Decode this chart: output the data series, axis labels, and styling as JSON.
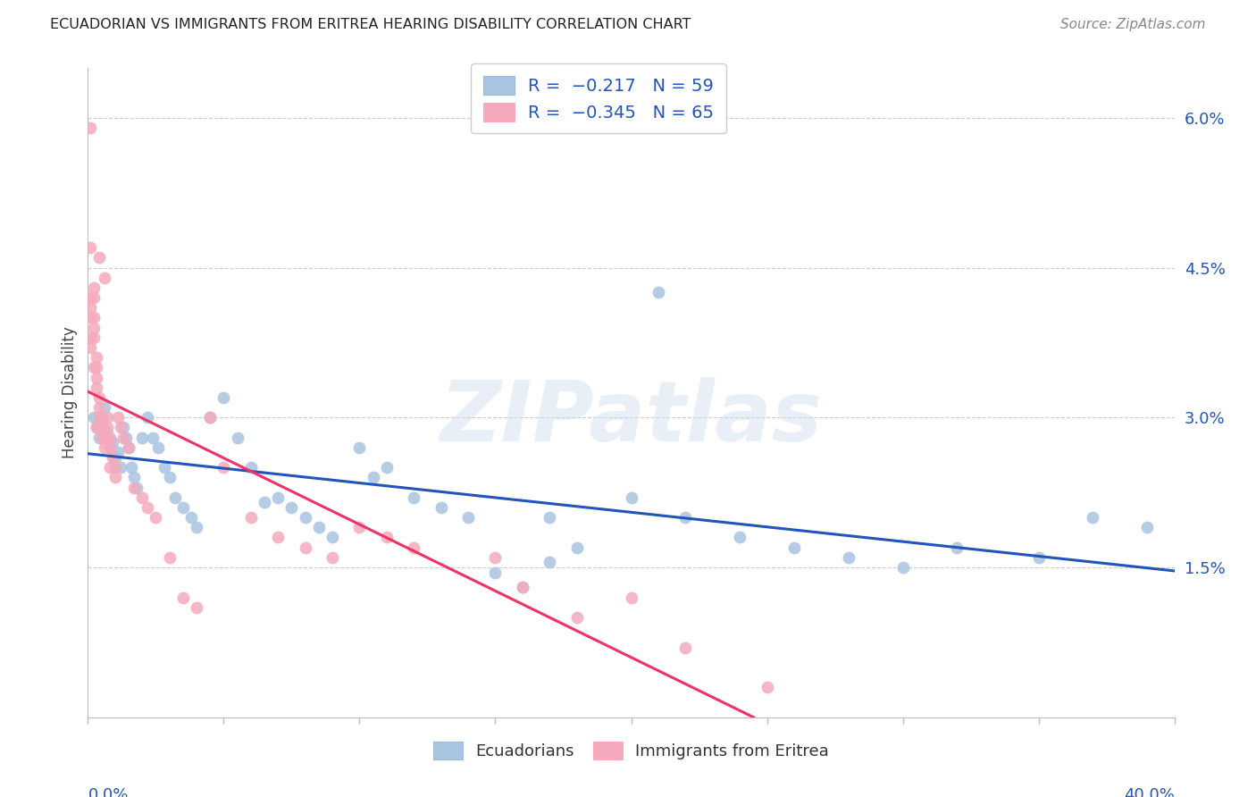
{
  "title": "ECUADORIAN VS IMMIGRANTS FROM ERITREA HEARING DISABILITY CORRELATION CHART",
  "source": "Source: ZipAtlas.com",
  "ylabel": "Hearing Disability",
  "right_yticks": [
    "1.5%",
    "3.0%",
    "4.5%",
    "6.0%"
  ],
  "right_ytick_vals": [
    0.015,
    0.03,
    0.045,
    0.06
  ],
  "xlim": [
    0.0,
    0.4
  ],
  "ylim": [
    0.0,
    0.065
  ],
  "blue_color": "#A8C4E0",
  "pink_color": "#F4AABC",
  "blue_line_color": "#2255BB",
  "pink_line_color": "#EE3366",
  "background_color": "#FFFFFF",
  "watermark": "ZIPatlas",
  "title_color": "#222222",
  "source_color": "#888888",
  "axis_label_color": "#2255BB",
  "grid_color": "#CCCCCC",
  "blue_x": [
    0.002,
    0.003,
    0.004,
    0.005,
    0.006,
    0.007,
    0.008,
    0.009,
    0.01,
    0.011,
    0.012,
    0.013,
    0.014,
    0.015,
    0.016,
    0.017,
    0.018,
    0.02,
    0.022,
    0.024,
    0.026,
    0.028,
    0.03,
    0.032,
    0.035,
    0.038,
    0.04,
    0.045,
    0.05,
    0.055,
    0.06,
    0.065,
    0.07,
    0.075,
    0.08,
    0.085,
    0.09,
    0.1,
    0.11,
    0.12,
    0.13,
    0.14,
    0.15,
    0.16,
    0.17,
    0.18,
    0.2,
    0.22,
    0.24,
    0.26,
    0.28,
    0.3,
    0.32,
    0.35,
    0.37,
    0.39,
    0.21,
    0.17,
    0.105
  ],
  "blue_y": [
    0.03,
    0.029,
    0.028,
    0.0295,
    0.031,
    0.0285,
    0.027,
    0.0275,
    0.026,
    0.0265,
    0.025,
    0.029,
    0.028,
    0.027,
    0.025,
    0.024,
    0.023,
    0.028,
    0.03,
    0.028,
    0.027,
    0.025,
    0.024,
    0.022,
    0.021,
    0.02,
    0.019,
    0.03,
    0.032,
    0.028,
    0.025,
    0.0215,
    0.022,
    0.021,
    0.02,
    0.019,
    0.018,
    0.027,
    0.025,
    0.022,
    0.021,
    0.02,
    0.0145,
    0.013,
    0.0155,
    0.017,
    0.022,
    0.02,
    0.018,
    0.017,
    0.016,
    0.015,
    0.017,
    0.016,
    0.02,
    0.019,
    0.0425,
    0.02,
    0.024
  ],
  "pink_x": [
    0.001,
    0.001,
    0.001,
    0.001,
    0.001,
    0.002,
    0.002,
    0.002,
    0.002,
    0.002,
    0.003,
    0.003,
    0.003,
    0.003,
    0.004,
    0.004,
    0.004,
    0.004,
    0.005,
    0.005,
    0.005,
    0.006,
    0.006,
    0.007,
    0.007,
    0.008,
    0.008,
    0.009,
    0.01,
    0.01,
    0.011,
    0.012,
    0.013,
    0.015,
    0.017,
    0.02,
    0.022,
    0.025,
    0.03,
    0.035,
    0.04,
    0.045,
    0.05,
    0.06,
    0.07,
    0.08,
    0.09,
    0.1,
    0.11,
    0.12,
    0.15,
    0.16,
    0.18,
    0.2,
    0.22,
    0.25,
    0.001,
    0.001,
    0.002,
    0.003,
    0.004,
    0.005,
    0.006,
    0.007,
    0.008
  ],
  "pink_y": [
    0.059,
    0.047,
    0.042,
    0.041,
    0.04,
    0.043,
    0.042,
    0.04,
    0.039,
    0.038,
    0.036,
    0.035,
    0.034,
    0.033,
    0.032,
    0.031,
    0.03,
    0.029,
    0.03,
    0.029,
    0.028,
    0.028,
    0.027,
    0.03,
    0.029,
    0.028,
    0.027,
    0.026,
    0.025,
    0.024,
    0.03,
    0.029,
    0.028,
    0.027,
    0.023,
    0.022,
    0.021,
    0.02,
    0.016,
    0.012,
    0.011,
    0.03,
    0.025,
    0.02,
    0.018,
    0.017,
    0.016,
    0.019,
    0.018,
    0.017,
    0.016,
    0.013,
    0.01,
    0.012,
    0.007,
    0.003,
    0.038,
    0.037,
    0.035,
    0.029,
    0.046,
    0.03,
    0.044,
    0.028,
    0.025
  ]
}
